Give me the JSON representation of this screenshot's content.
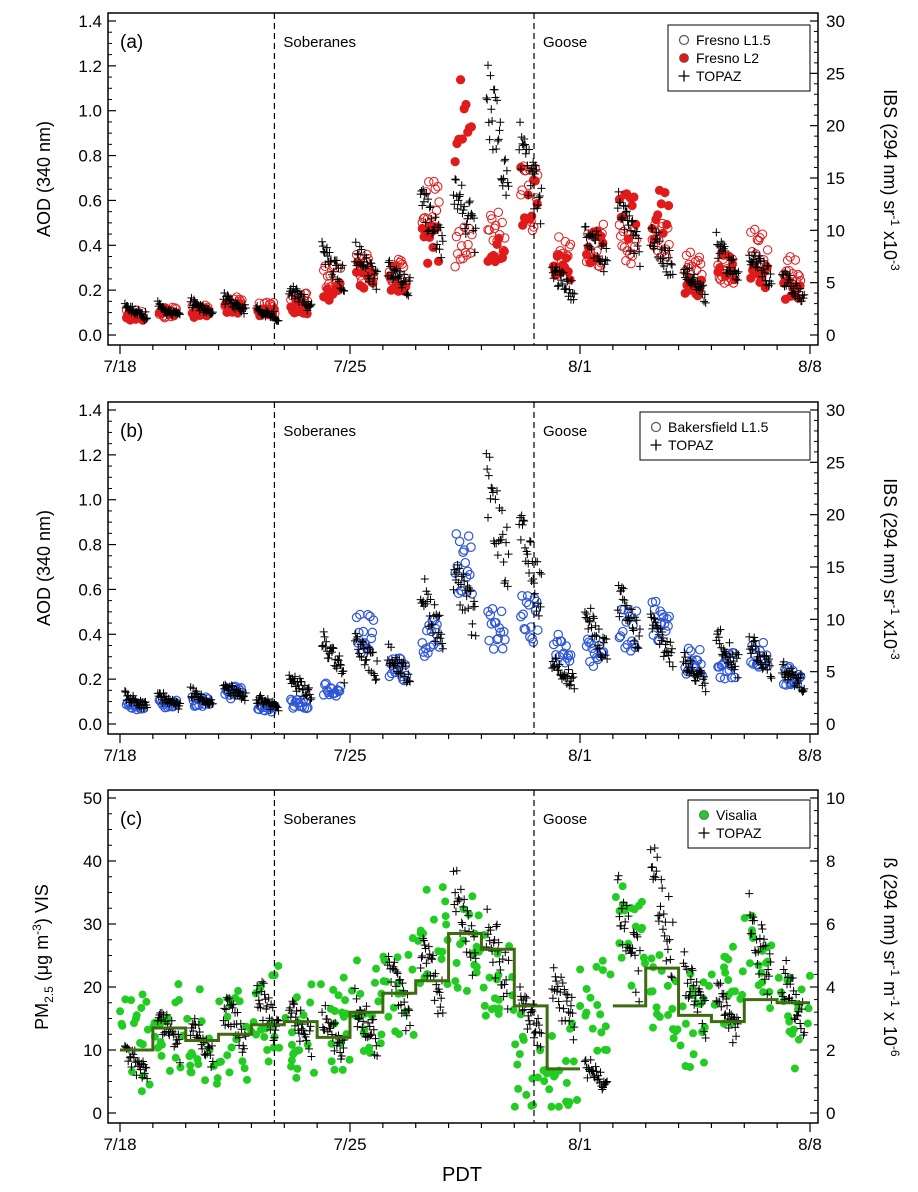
{
  "figure": {
    "xlabel": "PDT",
    "events": [
      {
        "label": "Soberanes",
        "x": "7/22 PM"
      },
      {
        "label": "Goose",
        "x": "7/30 PM"
      }
    ]
  },
  "colors": {
    "fresno": "#e01b1b",
    "bakersfield": "#2f56d8",
    "visalia": "#22cc22",
    "step": "#3f6b10",
    "topaz": "#000000"
  },
  "chart_data": [
    {
      "type": "scatter",
      "panel_label": "(a)",
      "ylabel": "AOD (340 nm)",
      "y2label_main": "IBS (294 nm) sr",
      "y2label_exp": "-1",
      "y2label_tail": " x10",
      "y2label_tail_exp": "-3",
      "x_ticks": [
        "7/18",
        "7/25",
        "8/1",
        "8/8"
      ],
      "xlim_days": [
        "7/18",
        "8/8"
      ],
      "ylim": [
        0,
        1.4
      ],
      "y_ticks": [
        "0.0",
        "0.2",
        "0.4",
        "0.6",
        "0.8",
        "1.0",
        "1.2",
        "1.4"
      ],
      "y2lim": [
        0,
        30
      ],
      "y2_ticks": [
        "0",
        "5",
        "10",
        "15",
        "20",
        "25",
        "30"
      ],
      "legend": [
        "Fresno L1.5",
        "Fresno L2",
        "TOPAZ"
      ],
      "series": [
        {
          "name": "Fresno L1.5",
          "daily_aod": [
            0.09,
            0.1,
            0.11,
            0.14,
            0.12,
            0.15,
            0.25,
            0.3,
            0.28,
            0.55,
            0.4,
            0.45,
            0.62,
            0.35,
            0.4,
            0.42,
            0.45,
            0.3,
            0.28,
            0.38,
            0.28
          ]
        },
        {
          "name": "Fresno L2",
          "daily_aod": [
            0.08,
            0.1,
            0.1,
            0.12,
            0.1,
            0.12,
            0.2,
            0.27,
            0.25,
            0.4,
            0.95,
            0.42,
            0.62,
            0.3,
            0.4,
            0.55,
            0.55,
            0.22,
            0.3,
            0.25,
            0.2
          ]
        },
        {
          "name": "TOPAZ",
          "daily_ibs": [
            2.2,
            2.2,
            2.5,
            2.9,
            2.0,
            3.5,
            6.5,
            6.5,
            5.5,
            10.5,
            12.0,
            19.0,
            15.0,
            5.0,
            8.5,
            10.0,
            8.0,
            5.0,
            7.0,
            6.5,
            4.5
          ]
        }
      ]
    },
    {
      "type": "scatter",
      "panel_label": "(b)",
      "ylabel": "AOD (340 nm)",
      "y2label_main": "IBS (294 nm) sr",
      "y2label_exp": "-1",
      "y2label_tail": " x10",
      "y2label_tail_exp": "-3",
      "x_ticks": [
        "7/18",
        "7/25",
        "8/1",
        "8/8"
      ],
      "xlim_days": [
        "7/18",
        "8/8"
      ],
      "ylim": [
        0,
        1.4
      ],
      "y_ticks": [
        "0.0",
        "0.2",
        "0.4",
        "0.6",
        "0.8",
        "1.0",
        "1.2",
        "1.4"
      ],
      "y2lim": [
        0,
        30
      ],
      "y2_ticks": [
        "0",
        "5",
        "10",
        "15",
        "20",
        "25",
        "30"
      ],
      "legend": [
        "Bakersfield L1.5",
        "TOPAZ"
      ],
      "series": [
        {
          "name": "Bakersfield L1.5",
          "daily_aod": [
            0.08,
            0.09,
            0.1,
            0.14,
            0.07,
            0.09,
            0.16,
            0.4,
            0.25,
            0.38,
            0.7,
            0.42,
            0.47,
            0.33,
            0.32,
            0.42,
            0.45,
            0.28,
            0.26,
            0.3,
            0.22
          ]
        },
        {
          "name": "TOPAZ",
          "daily_ibs": [
            2.2,
            2.2,
            2.5,
            2.9,
            2.0,
            3.5,
            6.5,
            6.5,
            5.5,
            10.5,
            12.0,
            19.0,
            15.0,
            5.0,
            8.5,
            10.0,
            8.0,
            5.0,
            7.0,
            6.5,
            4.5
          ]
        }
      ]
    },
    {
      "type": "scatter",
      "panel_label": "(c)",
      "ylabel_main": "PM",
      "ylabel_sub": "2.5",
      "ylabel_tail": " (μg m",
      "ylabel_tail_exp": "-3",
      "ylabel_end": ") VIS",
      "y2label_main": "ß (294 nm) sr",
      "y2label_exp1": "-1",
      "y2label_mid": " m",
      "y2label_exp2": "-1",
      "y2label_tail": " x 10",
      "y2label_tail_exp": "-6",
      "x_ticks": [
        "7/18",
        "7/25",
        "8/1",
        "8/8"
      ],
      "xlim_days": [
        "7/18",
        "8/8"
      ],
      "ylim": [
        0,
        50
      ],
      "y_ticks": [
        "0",
        "10",
        "20",
        "30",
        "40",
        "50"
      ],
      "y2lim": [
        0,
        10
      ],
      "y2_ticks": [
        "0",
        "2",
        "4",
        "6",
        "8",
        "10"
      ],
      "legend": [
        "Visalia",
        "TOPAZ"
      ],
      "series": [
        {
          "name": "Visalia",
          "daily_pm25": [
            11,
            14,
            12,
            13,
            16,
            13,
            14,
            17,
            20,
            28,
            27,
            21,
            8,
            7,
            17,
            28,
            18,
            15,
            20,
            24,
            14
          ]
        },
        {
          "name": "Visalia daily mean (step)",
          "x_day": [
            0,
            1,
            2,
            3,
            4,
            5,
            6,
            7,
            8,
            9,
            10,
            11,
            12,
            13,
            14,
            15,
            16,
            17,
            18,
            19,
            20,
            21
          ],
          "y_pm25": [
            10,
            13.5,
            11.5,
            12.5,
            14,
            14.5,
            12,
            16,
            19,
            21,
            28.5,
            26,
            17,
            7,
            null,
            17,
            23,
            15.5,
            14.5,
            18,
            17.5,
            9.5
          ]
        },
        {
          "name": "TOPAZ",
          "daily_beta": [
            1.6,
            2.6,
            2.2,
            2.8,
            3.2,
            2.8,
            2.6,
            2.8,
            3.8,
            4.3,
            5.8,
            5.0,
            3.0,
            3.5,
            1.2,
            5.6,
            6.6,
            3.8,
            3.2,
            5.2,
            3.6
          ]
        }
      ]
    }
  ]
}
